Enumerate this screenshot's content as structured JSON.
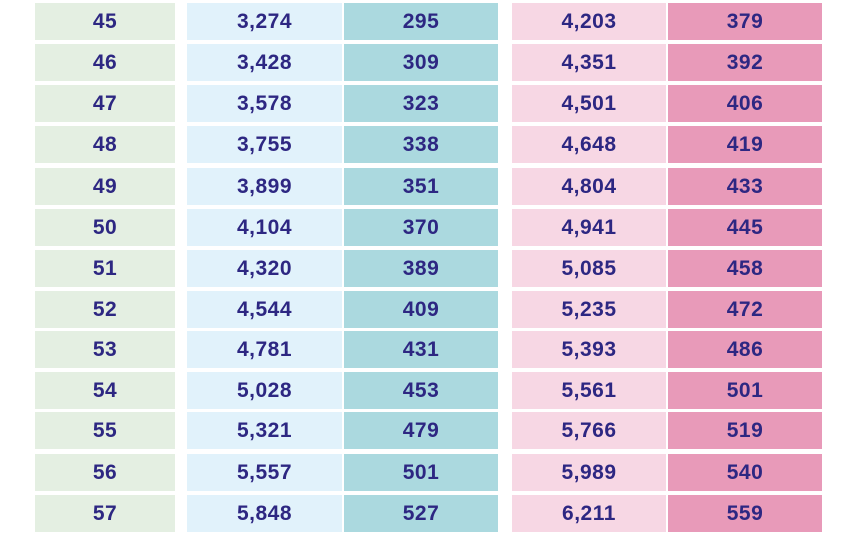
{
  "colors": {
    "text": "#2d2782",
    "age_column": "#e4efe2",
    "light_blue_column": "#e1f2fb",
    "teal_column": "#abd9df",
    "light_pink_column": "#f7d7e4",
    "pink_column": "#e89ab9"
  },
  "rows": [
    {
      "age": "45",
      "col1": "3,274",
      "col2": "295",
      "col3": "4,203",
      "col4": "379"
    },
    {
      "age": "46",
      "col1": "3,428",
      "col2": "309",
      "col3": "4,351",
      "col4": "392"
    },
    {
      "age": "47",
      "col1": "3,578",
      "col2": "323",
      "col3": "4,501",
      "col4": "406"
    },
    {
      "age": "48",
      "col1": "3,755",
      "col2": "338",
      "col3": "4,648",
      "col4": "419"
    },
    {
      "age": "49",
      "col1": "3,899",
      "col2": "351",
      "col3": "4,804",
      "col4": "433"
    },
    {
      "age": "50",
      "col1": "4,104",
      "col2": "370",
      "col3": "4,941",
      "col4": "445"
    },
    {
      "age": "51",
      "col1": "4,320",
      "col2": "389",
      "col3": "5,085",
      "col4": "458"
    },
    {
      "age": "52",
      "col1": "4,544",
      "col2": "409",
      "col3": "5,235",
      "col4": "472"
    },
    {
      "age": "53",
      "col1": "4,781",
      "col2": "431",
      "col3": "5,393",
      "col4": "486"
    },
    {
      "age": "54",
      "col1": "5,028",
      "col2": "453",
      "col3": "5,561",
      "col4": "501"
    },
    {
      "age": "55",
      "col1": "5,321",
      "col2": "479",
      "col3": "5,766",
      "col4": "519"
    },
    {
      "age": "56",
      "col1": "5,557",
      "col2": "501",
      "col3": "5,989",
      "col4": "540"
    },
    {
      "age": "57",
      "col1": "5,848",
      "col2": "527",
      "col3": "6,211",
      "col4": "559"
    }
  ]
}
